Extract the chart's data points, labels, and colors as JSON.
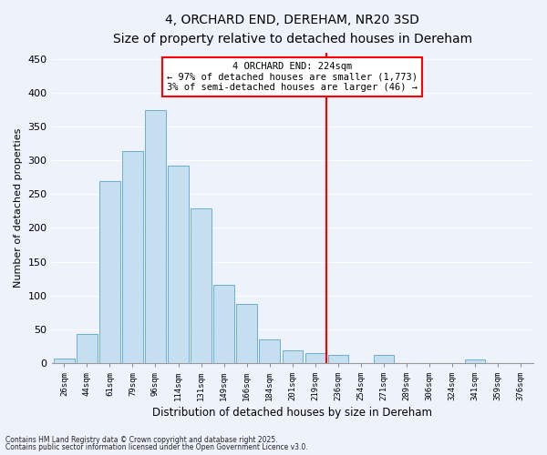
{
  "title": "4, ORCHARD END, DEREHAM, NR20 3SD",
  "subtitle": "Size of property relative to detached houses in Dereham",
  "xlabel": "Distribution of detached houses by size in Dereham",
  "ylabel": "Number of detached properties",
  "bar_labels": [
    "26sqm",
    "44sqm",
    "61sqm",
    "79sqm",
    "96sqm",
    "114sqm",
    "131sqm",
    "149sqm",
    "166sqm",
    "184sqm",
    "201sqm",
    "219sqm",
    "236sqm",
    "254sqm",
    "271sqm",
    "289sqm",
    "306sqm",
    "324sqm",
    "341sqm",
    "359sqm",
    "376sqm"
  ],
  "bar_values": [
    7,
    43,
    270,
    314,
    375,
    292,
    229,
    116,
    88,
    35,
    18,
    14,
    12,
    0,
    12,
    0,
    0,
    0,
    5,
    0,
    0
  ],
  "bar_color": "#c5dff0",
  "bar_edge_color": "#6baed6",
  "ylim": [
    0,
    460
  ],
  "yticks": [
    0,
    50,
    100,
    150,
    200,
    250,
    300,
    350,
    400,
    450
  ],
  "property_line_label": "4 ORCHARD END: 224sqm",
  "annotation_line1": "← 97% of detached houses are smaller (1,773)",
  "annotation_line2": "3% of semi-detached houses are larger (46) →",
  "footnote1": "Contains HM Land Registry data © Crown copyright and database right 2025.",
  "footnote2": "Contains public sector information licensed under the Open Government Licence v3.0.",
  "background_color": "#eef2fa",
  "grid_color": "#ffffff",
  "line_x_index": 11.5
}
